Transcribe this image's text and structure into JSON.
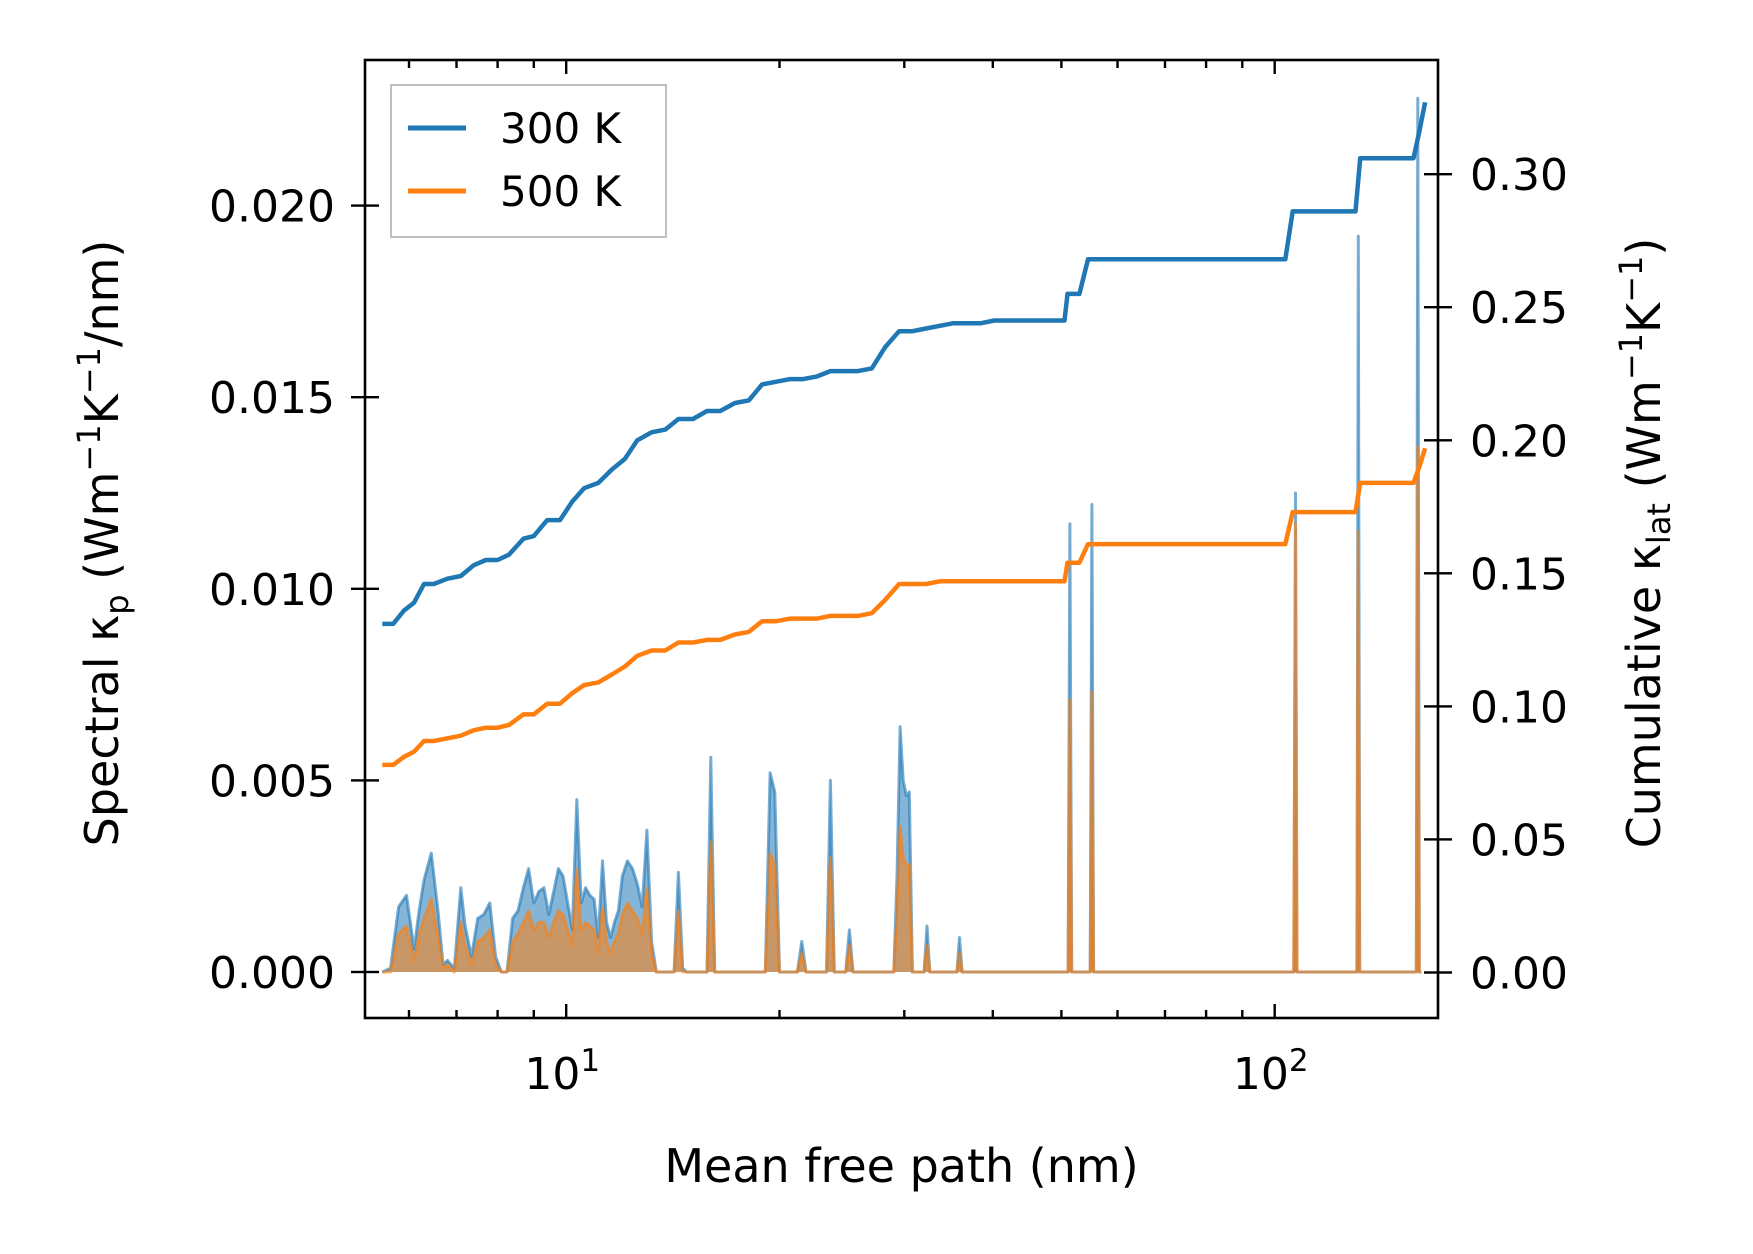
{
  "chart_data": {
    "type": "line",
    "xlabel": "Mean free path (nm)",
    "x_scale": "log",
    "xlim": [
      5.2,
      170
    ],
    "x_ticks": [
      {
        "value": 10,
        "base": "10",
        "exp": "1"
      },
      {
        "value": 100,
        "base": "10",
        "exp": "2"
      }
    ],
    "ylabel_left": {
      "prefix": "Spectral κ",
      "sub": "p",
      "mid1": " (Wm",
      "sup1": "−1",
      "mid2": "K",
      "sup2": "−1",
      "suffix": "/nm)"
    },
    "ylabel_right": {
      "prefix": "Cumulative κ",
      "sub": "lat",
      "mid1": " (Wm",
      "sup1": "−1",
      "mid2": "K",
      "sup2": "−1",
      "suffix": ")"
    },
    "ylim_left": [
      -0.0012,
      0.0238
    ],
    "ylim_right": [
      -0.0171,
      0.3429
    ],
    "yticks_left": [
      "0.000",
      "0.005",
      "0.010",
      "0.015",
      "0.020"
    ],
    "yticks_right": [
      "0.00",
      "0.05",
      "0.10",
      "0.15",
      "0.20",
      "0.25",
      "0.30"
    ],
    "colors": {
      "300K": "#1f77b4",
      "500K": "#ff7f0e"
    },
    "legend": {
      "placement": "top-left",
      "entries": [
        "300 K",
        "500 K"
      ]
    },
    "cumulative": [
      {
        "name": "300 K",
        "axis": "right",
        "x": [
          5.5,
          5.7,
          5.9,
          6.1,
          6.3,
          6.5,
          6.8,
          7.1,
          7.4,
          7.7,
          8.0,
          8.3,
          8.7,
          9.0,
          9.4,
          9.8,
          10.2,
          10.6,
          11.1,
          11.6,
          12.1,
          12.6,
          13.2,
          13.8,
          14.4,
          15.1,
          15.8,
          16.5,
          17.3,
          18.1,
          18.9,
          19.8,
          20.7,
          21.6,
          22.6,
          23.6,
          24.7,
          25.8,
          27.0,
          28.2,
          29.5,
          30.8,
          32.2,
          33.7,
          35.2,
          36.8,
          38.5,
          40.2,
          42.0,
          44.0,
          46.0,
          48.0,
          50.5,
          51.0,
          53.0,
          54.5,
          55.5,
          60,
          70,
          80,
          90,
          103.5,
          106,
          110,
          120,
          130,
          132,
          135,
          140,
          150,
          155,
          157,
          160,
          163
        ],
        "values": [
          0.131,
          0.131,
          0.136,
          0.139,
          0.146,
          0.146,
          0.148,
          0.149,
          0.153,
          0.155,
          0.155,
          0.157,
          0.163,
          0.164,
          0.17,
          0.17,
          0.177,
          0.182,
          0.184,
          0.189,
          0.193,
          0.2,
          0.203,
          0.204,
          0.208,
          0.208,
          0.211,
          0.211,
          0.214,
          0.215,
          0.221,
          0.222,
          0.223,
          0.223,
          0.224,
          0.226,
          0.226,
          0.226,
          0.227,
          0.235,
          0.241,
          0.241,
          0.242,
          0.243,
          0.244,
          0.244,
          0.244,
          0.245,
          0.245,
          0.245,
          0.245,
          0.245,
          0.245,
          0.255,
          0.255,
          0.268,
          0.268,
          0.268,
          0.268,
          0.268,
          0.268,
          0.268,
          0.286,
          0.286,
          0.286,
          0.286,
          0.306,
          0.306,
          0.306,
          0.306,
          0.306,
          0.306,
          0.316,
          0.327
        ]
      },
      {
        "name": "500 K",
        "axis": "right",
        "x": [
          5.5,
          5.7,
          5.9,
          6.1,
          6.3,
          6.5,
          6.8,
          7.1,
          7.4,
          7.7,
          8.0,
          8.3,
          8.7,
          9.0,
          9.4,
          9.8,
          10.2,
          10.6,
          11.1,
          11.6,
          12.1,
          12.6,
          13.2,
          13.8,
          14.4,
          15.1,
          15.8,
          16.5,
          17.3,
          18.1,
          18.9,
          19.8,
          20.7,
          21.6,
          22.6,
          23.6,
          24.7,
          25.8,
          27.0,
          28.2,
          29.5,
          30.8,
          32.2,
          33.7,
          35.2,
          36.8,
          38.5,
          40.2,
          42.0,
          44.0,
          46.0,
          48.0,
          50.5,
          51.0,
          53.0,
          54.5,
          55.5,
          60,
          70,
          80,
          90,
          103.5,
          106,
          110,
          120,
          130,
          132,
          135,
          140,
          150,
          155,
          157,
          160,
          163
        ],
        "values": [
          0.078,
          0.078,
          0.081,
          0.083,
          0.087,
          0.087,
          0.088,
          0.089,
          0.091,
          0.092,
          0.092,
          0.093,
          0.097,
          0.097,
          0.101,
          0.101,
          0.105,
          0.108,
          0.109,
          0.112,
          0.115,
          0.119,
          0.121,
          0.121,
          0.124,
          0.124,
          0.125,
          0.125,
          0.127,
          0.128,
          0.132,
          0.132,
          0.133,
          0.133,
          0.133,
          0.134,
          0.134,
          0.134,
          0.135,
          0.14,
          0.146,
          0.146,
          0.146,
          0.147,
          0.147,
          0.147,
          0.147,
          0.147,
          0.147,
          0.147,
          0.147,
          0.147,
          0.147,
          0.154,
          0.154,
          0.161,
          0.161,
          0.161,
          0.161,
          0.161,
          0.161,
          0.161,
          0.173,
          0.173,
          0.173,
          0.173,
          0.184,
          0.184,
          0.184,
          0.184,
          0.184,
          0.184,
          0.19,
          0.197
        ]
      }
    ],
    "spectral": [
      {
        "name": "300 K",
        "axis": "left",
        "fill_opacity": 0.55,
        "x": [
          5.5,
          5.65,
          5.8,
          5.95,
          6.1,
          6.2,
          6.3,
          6.45,
          6.6,
          6.7,
          6.8,
          6.95,
          7.1,
          7.2,
          7.35,
          7.5,
          7.65,
          7.8,
          7.95,
          8.1,
          8.25,
          8.4,
          8.55,
          8.7,
          8.85,
          9.0,
          9.15,
          9.3,
          9.45,
          9.6,
          9.75,
          9.9,
          10.05,
          10.2,
          10.35,
          10.5,
          10.65,
          10.8,
          10.95,
          11.1,
          11.25,
          11.4,
          11.55,
          11.7,
          11.85,
          12.0,
          12.2,
          12.4,
          12.6,
          12.8,
          13.0,
          13.2,
          13.4,
          13.6,
          13.8,
          14.0,
          14.2,
          14.4,
          14.6,
          14.8,
          15.0,
          15.2,
          15.4,
          15.6,
          15.8,
          16.0,
          16.2,
          16.4,
          16.6,
          16.8,
          17.0,
          17.3,
          17.6,
          17.9,
          18.2,
          18.5,
          18.8,
          19.1,
          19.4,
          19.7,
          20.0,
          20.3,
          20.6,
          20.9,
          21.2,
          21.5,
          21.8,
          22.1,
          22.4,
          22.7,
          23.0,
          23.3,
          23.6,
          23.9,
          24.2,
          24.5,
          24.8,
          25.1,
          25.4,
          25.7,
          26.0,
          26.3,
          26.6,
          26.9,
          27.2,
          27.5,
          27.8,
          28.1,
          28.4,
          28.7,
          29.0,
          29.3,
          29.6,
          29.9,
          30.2,
          30.5,
          30.8,
          31.1,
          31.4,
          31.7,
          32.0,
          32.3,
          32.6,
          32.9,
          33.2,
          33.5,
          33.8,
          34.1,
          34.4,
          34.7,
          35.0,
          35.3,
          35.6,
          35.9,
          36.2,
          36.5,
          50.2,
          50.8,
          51.1,
          51.4,
          51.7,
          52.5,
          54.0,
          54.6,
          54.9,
          55.2,
          55.5,
          56.3,
          104,
          105,
          105.8,
          106.4,
          107,
          107.5,
          108.3,
          128,
          129,
          130,
          130.6,
          131.2,
          131.8,
          132.5,
          155,
          156.5,
          157.5,
          158.4,
          159.2,
          160,
          161
        ],
        "values": [
          0.0,
          0.0001,
          0.0017,
          0.002,
          0.0006,
          0.0016,
          0.0024,
          0.0031,
          0.0015,
          0.0002,
          0.0003,
          0.0001,
          0.0022,
          0.0012,
          0.0004,
          0.0014,
          0.0015,
          0.0018,
          0.0004,
          0.0,
          0.0,
          0.0014,
          0.0016,
          0.0022,
          0.0027,
          0.0018,
          0.0021,
          0.0022,
          0.0015,
          0.0021,
          0.0027,
          0.0025,
          0.0018,
          0.0011,
          0.0045,
          0.0018,
          0.0022,
          0.002,
          0.0019,
          0.0009,
          0.0029,
          0.0013,
          0.0009,
          0.0013,
          0.0016,
          0.0025,
          0.0029,
          0.0027,
          0.0023,
          0.0017,
          0.0037,
          0.0008,
          0.0,
          0.0,
          0.0,
          0.0,
          0.0,
          0.0026,
          0.0001,
          0.0,
          0.0,
          0.0,
          0.0,
          0.0,
          0.0,
          0.0056,
          0.0,
          0.0,
          0.0,
          0.0,
          0.0,
          0.0,
          0.0,
          0.0,
          0.0,
          0.0,
          0.0,
          0.0,
          0.0052,
          0.0047,
          0.0,
          0.0,
          0.0,
          0.0,
          0.0,
          0.0008,
          0.0,
          0.0,
          0.0,
          0.0,
          0.0,
          0.0,
          0.005,
          0.0,
          0.0,
          0.0,
          0.0,
          0.0011,
          0.0,
          0.0,
          0.0,
          0.0,
          0.0,
          0.0,
          0.0,
          0.0,
          0.0,
          0.0,
          0.0,
          0.0,
          0.0,
          0.0025,
          0.0064,
          0.005,
          0.0046,
          0.0047,
          0.0,
          0.0,
          0.0,
          0.0,
          0.0,
          0.0012,
          0.0,
          0.0,
          0.0,
          0.0,
          0.0,
          0.0,
          0.0,
          0.0,
          0.0,
          0.0,
          0.0,
          0.0009,
          0.0,
          0.0,
          0.0,
          0.0,
          0.0,
          0.0117,
          0.0,
          0.0,
          0.0,
          0.0,
          0.0,
          0.0122,
          0.0,
          0.0,
          0.0,
          0.0,
          0.0,
          0.0,
          0.0125,
          0.0,
          0.0,
          0.0,
          0.0,
          0.0,
          0.0,
          0.0192,
          0.0,
          0.0,
          0.0,
          0.0,
          0.0,
          0.0,
          0.0228,
          0.0,
          0.0
        ]
      },
      {
        "name": "500 K",
        "axis": "left",
        "fill_opacity": 0.55,
        "x": [
          5.5,
          5.65,
          5.8,
          5.95,
          6.1,
          6.2,
          6.3,
          6.45,
          6.6,
          6.7,
          6.8,
          6.95,
          7.1,
          7.2,
          7.35,
          7.5,
          7.65,
          7.8,
          7.95,
          8.1,
          8.25,
          8.4,
          8.55,
          8.7,
          8.85,
          9.0,
          9.15,
          9.3,
          9.45,
          9.6,
          9.75,
          9.9,
          10.05,
          10.2,
          10.35,
          10.5,
          10.65,
          10.8,
          10.95,
          11.1,
          11.25,
          11.4,
          11.55,
          11.7,
          11.85,
          12.0,
          12.2,
          12.4,
          12.6,
          12.8,
          13.0,
          13.2,
          13.4,
          13.6,
          13.8,
          14.0,
          14.2,
          14.4,
          14.6,
          14.8,
          15.0,
          15.2,
          15.4,
          15.6,
          15.8,
          16.0,
          16.2,
          16.4,
          16.6,
          16.8,
          17.0,
          17.3,
          17.6,
          17.9,
          18.2,
          18.5,
          18.8,
          19.1,
          19.4,
          19.7,
          20.0,
          20.3,
          20.6,
          20.9,
          21.2,
          21.5,
          21.8,
          22.1,
          22.4,
          22.7,
          23.0,
          23.3,
          23.6,
          23.9,
          24.2,
          24.5,
          24.8,
          25.1,
          25.4,
          25.7,
          26.0,
          26.3,
          26.6,
          26.9,
          27.2,
          27.5,
          27.8,
          28.1,
          28.4,
          28.7,
          29.0,
          29.3,
          29.6,
          29.9,
          30.2,
          30.5,
          30.8,
          31.1,
          31.4,
          31.7,
          32.0,
          32.3,
          32.6,
          32.9,
          33.2,
          33.5,
          33.8,
          34.1,
          34.4,
          34.7,
          35.0,
          35.3,
          35.6,
          35.9,
          36.2,
          36.5,
          50.2,
          50.8,
          51.1,
          51.4,
          51.7,
          52.5,
          54.0,
          54.6,
          54.9,
          55.2,
          55.5,
          56.3,
          104,
          105,
          105.8,
          106.4,
          107,
          107.5,
          108.3,
          128,
          129,
          130,
          130.6,
          131.2,
          131.8,
          132.5,
          155,
          156.5,
          157.5,
          158.4,
          159.2,
          160,
          161
        ],
        "values": [
          0.0,
          0.0,
          0.001,
          0.0012,
          0.0003,
          0.001,
          0.0014,
          0.0019,
          0.0009,
          0.0001,
          0.0002,
          0.0,
          0.0013,
          0.0007,
          0.0002,
          0.0008,
          0.0009,
          0.0011,
          0.0002,
          0.0,
          0.0,
          0.0008,
          0.001,
          0.0013,
          0.0016,
          0.0011,
          0.0013,
          0.0013,
          0.0009,
          0.0013,
          0.0016,
          0.0015,
          0.0011,
          0.0007,
          0.0027,
          0.0011,
          0.0013,
          0.0012,
          0.0011,
          0.0005,
          0.0017,
          0.0008,
          0.0005,
          0.0008,
          0.001,
          0.0015,
          0.0018,
          0.0016,
          0.0014,
          0.001,
          0.0022,
          0.0005,
          0.0,
          0.0,
          0.0,
          0.0,
          0.0,
          0.0016,
          0.0,
          0.0,
          0.0,
          0.0,
          0.0,
          0.0,
          0.0,
          0.0034,
          0.0,
          0.0,
          0.0,
          0.0,
          0.0,
          0.0,
          0.0,
          0.0,
          0.0,
          0.0,
          0.0,
          0.0,
          0.0031,
          0.0028,
          0.0,
          0.0,
          0.0,
          0.0,
          0.0,
          0.0005,
          0.0,
          0.0,
          0.0,
          0.0,
          0.0,
          0.0,
          0.003,
          0.0,
          0.0,
          0.0,
          0.0,
          0.0007,
          0.0,
          0.0,
          0.0,
          0.0,
          0.0,
          0.0,
          0.0,
          0.0,
          0.0,
          0.0,
          0.0,
          0.0,
          0.0,
          0.0015,
          0.0038,
          0.003,
          0.0028,
          0.0028,
          0.0,
          0.0,
          0.0,
          0.0,
          0.0,
          0.0007,
          0.0,
          0.0,
          0.0,
          0.0,
          0.0,
          0.0,
          0.0,
          0.0,
          0.0,
          0.0,
          0.0,
          0.0005,
          0.0,
          0.0,
          0.0,
          0.0,
          0.0,
          0.0071,
          0.0,
          0.0,
          0.0,
          0.0,
          0.0,
          0.0073,
          0.0,
          0.0,
          0.0,
          0.0,
          0.0,
          0.0,
          0.0117,
          0.0,
          0.0,
          0.0,
          0.0,
          0.0,
          0.0,
          0.0115,
          0.0,
          0.0,
          0.0,
          0.0,
          0.0,
          0.0,
          0.0137,
          0.0,
          0.0
        ]
      }
    ]
  }
}
